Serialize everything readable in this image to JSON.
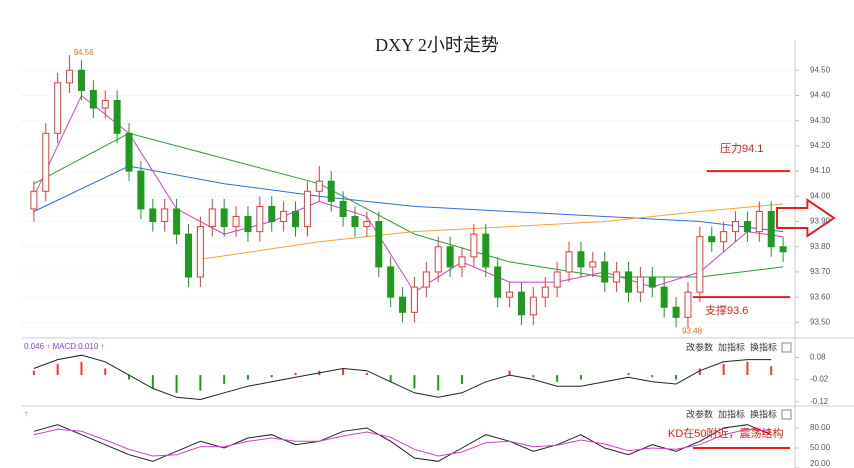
{
  "chart_data": {
    "type": "candlestick",
    "title": "DXY 2小时走势",
    "up_color": "#e8393a",
    "down_color": "#1e9a1e",
    "grid": true,
    "xlim": [
      -1,
      64
    ],
    "ylim": [
      93.45,
      94.62
    ],
    "yticks": [
      {
        "value": 93.5,
        "label": "93.50"
      },
      {
        "value": 93.6,
        "label": "93.60"
      },
      {
        "value": 93.7,
        "label": "93.70"
      },
      {
        "value": 93.8,
        "label": "93.80"
      },
      {
        "value": 93.9,
        "label": "93.90"
      },
      {
        "value": 94.0,
        "label": "94.00"
      },
      {
        "value": 94.1,
        "label": "94.10"
      },
      {
        "value": 94.2,
        "label": "94.20"
      },
      {
        "value": 94.3,
        "label": "94.30"
      },
      {
        "value": 94.4,
        "label": "94.40"
      },
      {
        "value": 94.5,
        "label": "94.50"
      }
    ],
    "candles": {
      "open": [
        93.95,
        94.02,
        94.25,
        94.45,
        94.5,
        94.42,
        94.35,
        94.38,
        94.25,
        94.1,
        93.95,
        93.9,
        93.95,
        93.85,
        93.68,
        93.88,
        93.95,
        93.88,
        93.92,
        93.86,
        93.96,
        93.9,
        93.94,
        93.88,
        94.02,
        94.06,
        93.98,
        93.92,
        93.88,
        93.9,
        93.72,
        93.6,
        93.54,
        93.64,
        93.7,
        93.8,
        93.72,
        93.76,
        93.85,
        93.72,
        93.6,
        93.62,
        93.53,
        93.6,
        93.64,
        93.7,
        93.78,
        93.72,
        93.74,
        93.66,
        93.7,
        93.62,
        93.68,
        93.64,
        93.56,
        93.52,
        93.62,
        93.84,
        93.82,
        93.86,
        93.9,
        93.86,
        93.94,
        93.8
      ],
      "high": [
        94.06,
        94.29,
        94.49,
        94.56,
        94.54,
        94.46,
        94.42,
        94.42,
        94.29,
        94.14,
        93.99,
        93.99,
        93.99,
        93.89,
        93.92,
        93.99,
        93.99,
        93.96,
        93.96,
        94.0,
        94.0,
        93.98,
        93.98,
        94.06,
        94.12,
        94.1,
        94.02,
        93.96,
        93.94,
        93.94,
        93.76,
        93.64,
        93.68,
        93.74,
        93.84,
        93.84,
        93.8,
        93.89,
        93.89,
        93.76,
        93.66,
        93.66,
        93.64,
        93.68,
        93.74,
        93.82,
        93.82,
        93.78,
        93.78,
        93.74,
        93.74,
        93.72,
        93.72,
        93.68,
        93.6,
        93.66,
        93.88,
        93.88,
        93.9,
        93.94,
        93.94,
        93.98,
        93.98,
        93.84
      ],
      "low": [
        93.9,
        93.98,
        94.21,
        94.41,
        94.38,
        94.31,
        94.31,
        94.21,
        94.06,
        93.91,
        93.86,
        93.86,
        93.81,
        93.64,
        93.64,
        93.84,
        93.84,
        93.84,
        93.82,
        93.82,
        93.86,
        93.86,
        93.84,
        93.84,
        93.98,
        93.94,
        93.88,
        93.84,
        93.84,
        93.68,
        93.56,
        93.5,
        93.5,
        93.6,
        93.66,
        93.68,
        93.68,
        93.72,
        93.68,
        93.56,
        93.56,
        93.49,
        93.49,
        93.56,
        93.6,
        93.66,
        93.68,
        93.68,
        93.62,
        93.62,
        93.58,
        93.58,
        93.6,
        93.52,
        93.48,
        93.48,
        93.58,
        93.78,
        93.78,
        93.82,
        93.82,
        93.82,
        93.76,
        93.74
      ],
      "close": [
        94.02,
        94.25,
        94.45,
        94.5,
        94.42,
        94.35,
        94.38,
        94.25,
        94.1,
        93.95,
        93.9,
        93.95,
        93.85,
        93.68,
        93.88,
        93.95,
        93.88,
        93.92,
        93.86,
        93.96,
        93.9,
        93.94,
        93.88,
        94.02,
        94.06,
        93.98,
        93.92,
        93.88,
        93.9,
        93.72,
        93.6,
        93.54,
        93.64,
        93.7,
        93.8,
        93.72,
        93.76,
        93.85,
        93.72,
        93.6,
        93.62,
        93.53,
        93.6,
        93.64,
        93.7,
        93.78,
        93.72,
        93.74,
        93.66,
        93.7,
        93.62,
        93.68,
        93.64,
        93.56,
        93.52,
        93.62,
        93.84,
        93.82,
        93.86,
        93.9,
        93.86,
        93.94,
        93.8,
        93.78
      ]
    },
    "series": [
      {
        "color": "#2f6fd6",
        "x": [
          0,
          8,
          16,
          24,
          32,
          40,
          48,
          56,
          63
        ],
        "values": [
          93.94,
          94.12,
          94.05,
          94.0,
          93.96,
          93.94,
          93.92,
          93.9,
          93.86
        ]
      },
      {
        "color": "#2e9a3a",
        "x": [
          0,
          8,
          16,
          24,
          32,
          40,
          48,
          56,
          63
        ],
        "values": [
          94.05,
          94.25,
          94.15,
          94.05,
          93.85,
          93.74,
          93.68,
          93.68,
          93.72
        ]
      },
      {
        "color": "#f2a33a",
        "x": [
          14,
          24,
          32,
          40,
          48,
          56,
          63
        ],
        "values": [
          93.75,
          93.82,
          93.86,
          93.88,
          93.9,
          93.94,
          93.97
        ]
      },
      {
        "color": "#d040c8",
        "x": [
          0,
          4,
          8,
          12,
          16,
          20,
          24,
          28,
          32,
          36,
          40,
          44,
          48,
          52,
          56,
          60,
          63
        ],
        "values": [
          94.0,
          94.4,
          94.25,
          93.95,
          93.85,
          93.9,
          93.98,
          93.92,
          93.62,
          93.74,
          93.66,
          93.66,
          93.7,
          93.64,
          93.7,
          93.86,
          93.84
        ]
      }
    ],
    "annotations": [
      {
        "text": "压力94.1",
        "value": 94.1
      },
      {
        "text": "支撑93.6",
        "value": 93.6
      }
    ],
    "high_index": 3,
    "low_index": 54,
    "macd": {
      "label": "0.046 ↑ MACD:0.010 ↑",
      "buttons": [
        "改参数",
        "加指标",
        "换指标"
      ],
      "xlim": [
        -0.5,
        32
      ],
      "ylim": [
        -0.135,
        0.145
      ],
      "yticks": [
        0.08,
        -0.02,
        -0.12
      ],
      "histogram": [
        0.02,
        0.05,
        0.06,
        0.03,
        -0.02,
        -0.06,
        -0.08,
        -0.07,
        -0.04,
        -0.02,
        -0.01,
        0.01,
        0.02,
        0.03,
        0.01,
        -0.03,
        -0.06,
        -0.07,
        -0.04,
        0.0,
        0.02,
        -0.01,
        -0.03,
        -0.02,
        0.0,
        0.01,
        -0.01,
        -0.02,
        0.03,
        0.05,
        0.06,
        0.04
      ],
      "line": [
        0.03,
        0.07,
        0.09,
        0.06,
        0.0,
        -0.06,
        -0.1,
        -0.11,
        -0.08,
        -0.05,
        -0.03,
        -0.01,
        0.01,
        0.03,
        0.02,
        -0.03,
        -0.08,
        -0.1,
        -0.08,
        -0.03,
        0.0,
        -0.02,
        -0.05,
        -0.05,
        -0.03,
        -0.01,
        -0.03,
        -0.04,
        0.02,
        0.06,
        0.07,
        0.07
      ]
    },
    "kd": {
      "label": "↑",
      "buttons": [
        "改参数",
        "加指标",
        "换指标"
      ],
      "xlim": [
        -0.5,
        32
      ],
      "ylim": [
        20,
        110
      ],
      "yticks": [
        {
          "value": 80,
          "label": "80.00"
        },
        {
          "value": 50,
          "label": "50.00"
        },
        {
          "value": 20,
          "label": "20.00"
        }
      ],
      "k": [
        75,
        85,
        70,
        55,
        40,
        30,
        45,
        60,
        50,
        65,
        70,
        55,
        60,
        75,
        80,
        60,
        35,
        30,
        50,
        70,
        60,
        45,
        55,
        70,
        50,
        40,
        55,
        45,
        60,
        80,
        85,
        70
      ],
      "d": [
        70,
        78,
        75,
        62,
        48,
        38,
        40,
        52,
        52,
        60,
        65,
        60,
        60,
        68,
        74,
        66,
        48,
        38,
        44,
        58,
        60,
        52,
        54,
        62,
        56,
        46,
        50,
        48,
        55,
        70,
        78,
        75
      ],
      "annotation": {
        "text": "KD在50附近，震荡结构",
        "value": 50
      }
    }
  }
}
